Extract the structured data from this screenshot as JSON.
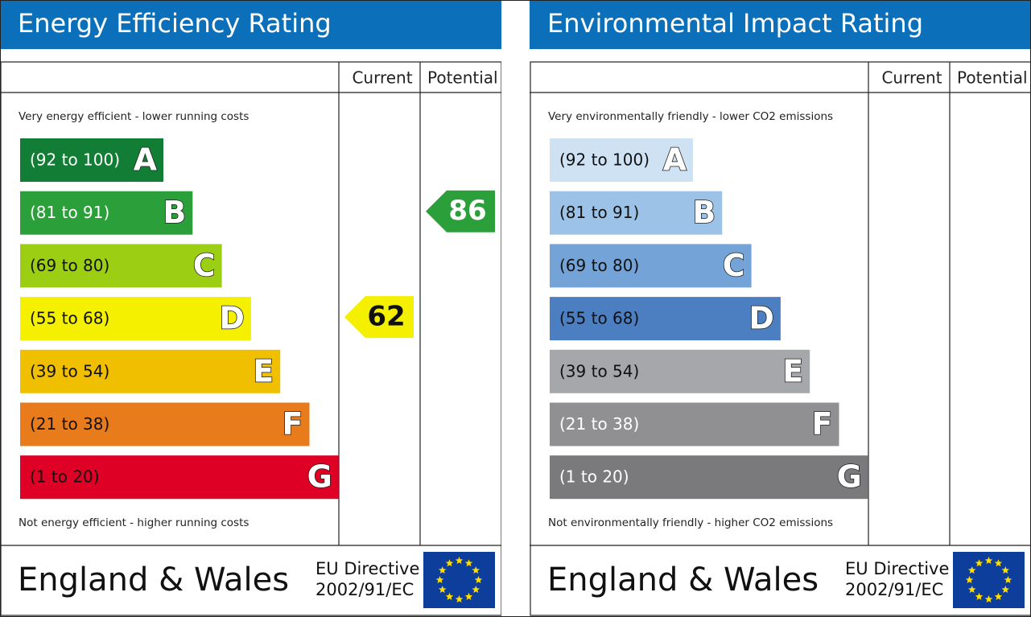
{
  "panels": [
    {
      "title": "Energy Efficiency Rating",
      "columns": [
        "Current",
        "Potential"
      ],
      "top_note": "Very energy efficient - lower running costs",
      "bottom_note": "Not energy efficient - higher running costs",
      "bands": [
        {
          "range": "(92 to 100)",
          "letter": "A",
          "color": "#127d35",
          "text_color": "#ffffff"
        },
        {
          "range": "(81 to 91)",
          "letter": "B",
          "color": "#2ba03a",
          "text_color": "#ffffff"
        },
        {
          "range": "(69 to 80)",
          "letter": "C",
          "color": "#9ccf14",
          "text_color": "#111111"
        },
        {
          "range": "(55 to 68)",
          "letter": "D",
          "color": "#f5f000",
          "text_color": "#111111"
        },
        {
          "range": "(39 to 54)",
          "letter": "E",
          "color": "#f0c000",
          "text_color": "#111111"
        },
        {
          "range": "(21 to 38)",
          "letter": "F",
          "color": "#e87b1c",
          "text_color": "#111111"
        },
        {
          "range": "(1 to 20)",
          "letter": "G",
          "color": "#de0025",
          "text_color": "#111111"
        }
      ],
      "current": 62,
      "potential": 86,
      "footer": {
        "region": "England & Wales",
        "directive": [
          "EU Directive",
          "2002/91/EC"
        ]
      }
    },
    {
      "title": "Environmental Impact Rating",
      "columns": [
        "Current",
        "Potential"
      ],
      "top_note": "Very environmentally friendly - lower CO2 emissions",
      "bottom_note": "Not environmentally friendly - higher CO2 emissions",
      "bands": [
        {
          "range": "(92 to 100)",
          "letter": "A",
          "color": "#cfe2f4",
          "text_color": "#111111"
        },
        {
          "range": "(81 to 91)",
          "letter": "B",
          "color": "#9cc3e7",
          "text_color": "#111111"
        },
        {
          "range": "(69 to 80)",
          "letter": "C",
          "color": "#73a3d7",
          "text_color": "#111111"
        },
        {
          "range": "(55 to 68)",
          "letter": "D",
          "color": "#4c7fc2",
          "text_color": "#111111"
        },
        {
          "range": "(39 to 54)",
          "letter": "E",
          "color": "#a6a7aa",
          "text_color": "#111111"
        },
        {
          "range": "(21 to 38)",
          "letter": "F",
          "color": "#909092",
          "text_color": "#ffffff"
        },
        {
          "range": "(1 to 20)",
          "letter": "G",
          "color": "#7a7a7d",
          "text_color": "#ffffff"
        }
      ],
      "footer": {
        "region": "England & Wales",
        "directive": [
          "EU Directive",
          "2002/91/EC"
        ]
      }
    }
  ]
}
